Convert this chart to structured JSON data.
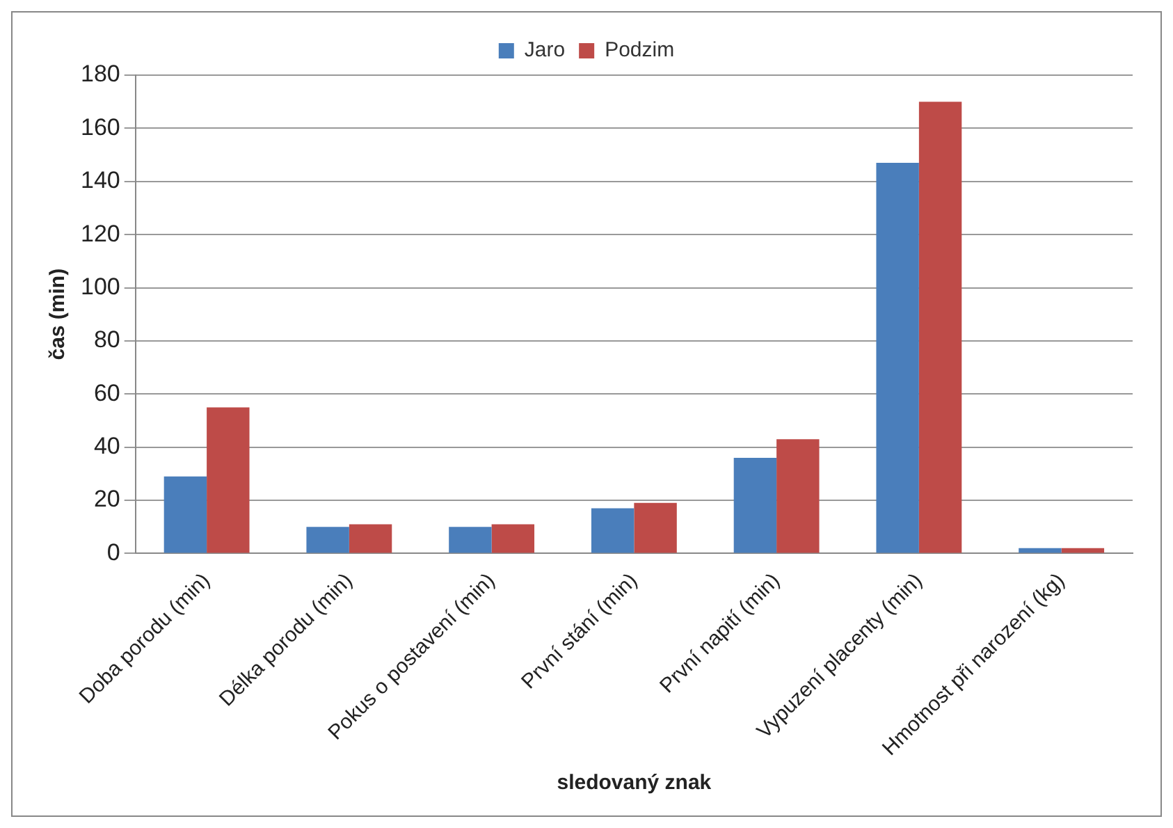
{
  "chart_data": {
    "type": "bar",
    "xlabel": "sledovaný znak",
    "ylabel": "čas (min)",
    "categories": [
      "Doba porodu (min)",
      "Délka porodu (min)",
      "Pokus o postavení (min)",
      "První stání (min)",
      "První napití (min)",
      "Vypuzení placenty (min)",
      "Hmotnost při narození (kg)"
    ],
    "series": [
      {
        "name": "Jaro",
        "color": "#4a7ebb",
        "values": [
          29,
          10,
          10,
          17,
          36,
          147,
          2
        ]
      },
      {
        "name": "Podzim",
        "color": "#be4b48",
        "values": [
          55,
          11,
          11,
          19,
          43,
          170,
          2
        ]
      }
    ],
    "ylim": [
      0,
      180
    ],
    "yticks": [
      0,
      20,
      40,
      60,
      80,
      100,
      120,
      140,
      160,
      180
    ],
    "grid": "y",
    "legend": "top"
  }
}
